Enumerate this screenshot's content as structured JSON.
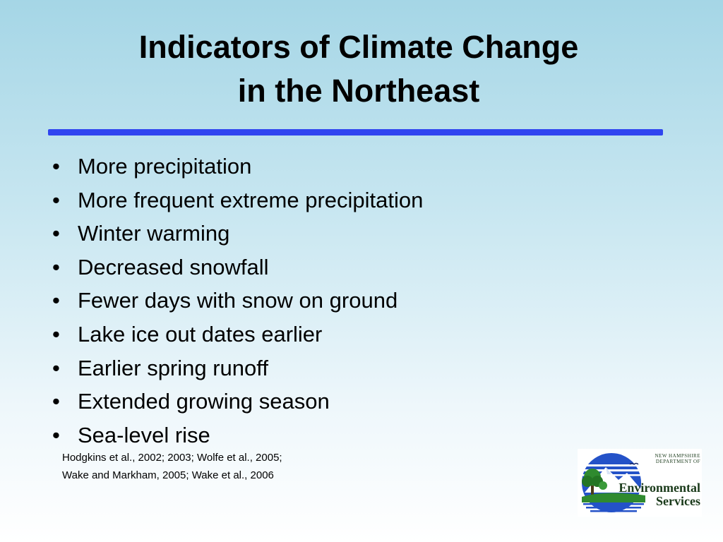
{
  "title": {
    "line1": "Indicators of Climate Change",
    "line2": "in the Northeast"
  },
  "bullet_symbol": "•",
  "bullets": [
    "More precipitation",
    "More frequent extreme precipitation",
    "Winter warming",
    "Decreased snowfall",
    "Fewer days with snow on ground",
    "Lake ice out dates earlier",
    "Earlier spring runoff",
    "Extended growing season",
    "Sea-level rise"
  ],
  "citation": {
    "line1": "Hodgkins  et al., 2002; 2003; Wolfe et al., 2005;",
    "line2": "Wake and Markham, 2005; Wake et al., 2006"
  },
  "logo": {
    "line1": "NEW HAMPSHIRE",
    "line2": "DEPARTMENT OF",
    "line3": "Environmental",
    "line4": "Services"
  },
  "colors": {
    "rule": "#2f45f0",
    "background_top": "#a5d6e6",
    "background_bottom": "#ffffff"
  }
}
